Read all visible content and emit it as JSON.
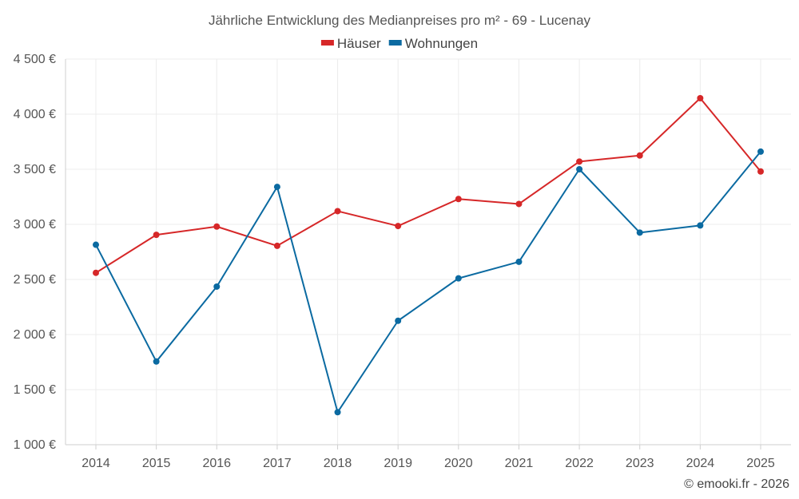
{
  "chart_data": {
    "type": "line",
    "title": "Jährliche Entwicklung des Medianpreises pro m² - 69 - Lucenay",
    "categories": [
      "2014",
      "2015",
      "2016",
      "2017",
      "2018",
      "2019",
      "2020",
      "2021",
      "2022",
      "2023",
      "2024",
      "2025"
    ],
    "series": [
      {
        "name": "Häuser",
        "color": "#d62728",
        "values": [
          2560,
          2905,
          2980,
          2805,
          3120,
          2985,
          3230,
          3185,
          3570,
          3625,
          4145,
          3480
        ]
      },
      {
        "name": "Wohnungen",
        "color": "#0b6aa1",
        "values": [
          2815,
          1755,
          2435,
          3340,
          1295,
          2125,
          2510,
          2660,
          3500,
          2925,
          2990,
          3660
        ]
      }
    ],
    "ylim": [
      1000,
      4500
    ],
    "yticks": [
      1000,
      1500,
      2000,
      2500,
      3000,
      3500,
      4000,
      4500
    ],
    "ytick_labels": [
      "1 000 €",
      "1 500 €",
      "2 000 €",
      "2 500 €",
      "3 000 €",
      "3 500 €",
      "4 000 €",
      "4 500 €"
    ],
    "legend_position": "top-center",
    "grid": true
  },
  "credit": "© emooki.fr - 2026"
}
